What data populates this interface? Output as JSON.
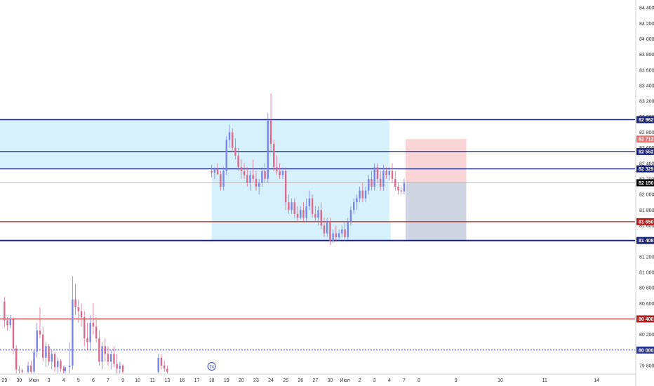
{
  "chart_data": {
    "type": "candlestick",
    "title": "",
    "xlabel": "",
    "ylabel": "",
    "ylim": [
      79700,
      84500
    ],
    "xlim": [
      -0.3,
      42.6
    ],
    "grid": false,
    "legend": "none",
    "x_ticks": [
      {
        "x": 0.0,
        "label": "29"
      },
      {
        "x": 1.0,
        "label": "30"
      },
      {
        "x": 2.0,
        "label": "Июн"
      },
      {
        "x": 3.0,
        "label": "3"
      },
      {
        "x": 4.0,
        "label": "4"
      },
      {
        "x": 5.0,
        "label": "5"
      },
      {
        "x": 6.0,
        "label": "6"
      },
      {
        "x": 7.0,
        "label": "7"
      },
      {
        "x": 8.0,
        "label": "9"
      },
      {
        "x": 9.0,
        "label": "10"
      },
      {
        "x": 10.0,
        "label": "11"
      },
      {
        "x": 11.0,
        "label": "13"
      },
      {
        "x": 12.0,
        "label": "16"
      },
      {
        "x": 13.0,
        "label": "17"
      },
      {
        "x": 14.0,
        "label": "18"
      },
      {
        "x": 15.0,
        "label": "19"
      },
      {
        "x": 16.0,
        "label": "20"
      },
      {
        "x": 17.0,
        "label": "23"
      },
      {
        "x": 18.0,
        "label": "24"
      },
      {
        "x": 19.0,
        "label": "25"
      },
      {
        "x": 20.0,
        "label": "26"
      },
      {
        "x": 21.0,
        "label": "27"
      },
      {
        "x": 22.0,
        "label": "30"
      },
      {
        "x": 23.0,
        "label": "Июл"
      },
      {
        "x": 24.0,
        "label": "2"
      },
      {
        "x": 25.0,
        "label": "3"
      },
      {
        "x": 26.0,
        "label": "4"
      },
      {
        "x": 27.0,
        "label": "7"
      },
      {
        "x": 28.0,
        "label": "8"
      },
      {
        "x": 30.5,
        "label": "9"
      },
      {
        "x": 33.5,
        "label": "10"
      },
      {
        "x": 36.5,
        "label": "11"
      },
      {
        "x": 40.0,
        "label": "14"
      }
    ],
    "y_ticks": [
      84400,
      84200,
      84000,
      83800,
      83600,
      83400,
      83200,
      83000,
      82800,
      82600,
      82400,
      82200,
      82000,
      81800,
      81600,
      81400,
      81200,
      81000,
      80800,
      80600,
      80400,
      80200,
      80000,
      79800
    ],
    "y_tick_labels": [
      "84 400",
      "84 200",
      "84 000",
      "83 800",
      "83 600",
      "83 400",
      "83 200",
      "83 000",
      "82 800",
      "82 600",
      "82 400",
      "82 200",
      "82 000",
      "81 800",
      "81 600",
      "81 400",
      "81 200",
      "81 000",
      "80 800",
      "80 600",
      "80 400",
      "80 200",
      "80 000",
      "79 800"
    ],
    "zones": [
      {
        "x0": -0.3,
        "x1": 26.0,
        "y0": 82329,
        "y1": 82962,
        "color": "#d6f1fb"
      },
      {
        "x0": 14.0,
        "x1": 26.0,
        "y0": 81650,
        "y1": 82329,
        "color": "#d6f1fb"
      },
      {
        "x0": 14.0,
        "x1": 26.1,
        "y0": 81408,
        "y1": 81650,
        "color": "#d6f1fb"
      }
    ],
    "position": {
      "x0": 27.1,
      "x1": 31.2,
      "entry": 82150,
      "target": 82712,
      "stop": 81408,
      "target_color": "#f8d4d6",
      "stop_color": "#cfd4e2"
    },
    "levels": [
      {
        "price": 82962,
        "label": "82 962",
        "color": "#1a237e",
        "style": "solid",
        "width": 1.5
      },
      {
        "price": 82552,
        "label": "82 552",
        "color": "#1a237e",
        "style": "solid",
        "width": 1.2
      },
      {
        "price": 82329,
        "label": "82 329",
        "color": "#1a237e",
        "style": "solid",
        "width": 1.2
      },
      {
        "price": 81650,
        "label": "81 650",
        "color": "#b71c1c",
        "style": "solid",
        "width": 1.2
      },
      {
        "price": 81408,
        "label": "81 408",
        "color": "#1a237e",
        "style": "solid",
        "width": 2.0
      },
      {
        "price": 80400,
        "label": "80 400",
        "color": "#b71c1c",
        "style": "solid",
        "width": 1.2
      },
      {
        "price": 80000,
        "label": "80 000",
        "color": "#283593",
        "style": "dotted",
        "width": 1.0
      }
    ],
    "extra_badges": [
      {
        "price": 82712,
        "label": "82 712",
        "color": "#e57373"
      }
    ],
    "last_price": {
      "price": 82150,
      "label": "82 150",
      "color": "#000000",
      "line_color": "#b0b0b0"
    },
    "dividends_marker": {
      "x": 14.0,
      "label": "24"
    },
    "candle_colors": {
      "up": "#7b84e8",
      "down": "#d86a8c",
      "wick": "#555555"
    },
    "candles": [
      [
        0.0,
        80620,
        80680,
        80300,
        80380
      ],
      [
        0.2,
        80380,
        80420,
        80250,
        80320
      ],
      [
        0.4,
        80320,
        80450,
        80280,
        80400
      ],
      [
        0.6,
        80400,
        80420,
        79950,
        80020
      ],
      [
        0.8,
        80020,
        80060,
        79700,
        79750
      ],
      [
        1.0,
        79750,
        79800,
        79700,
        79740
      ],
      [
        1.2,
        79740,
        79760,
        79700,
        79720
      ],
      [
        1.6,
        79720,
        79850,
        79700,
        79800
      ],
      [
        1.8,
        79800,
        79860,
        79700,
        79720
      ],
      [
        2.0,
        79720,
        80000,
        79700,
        79980
      ],
      [
        2.2,
        79980,
        80350,
        79900,
        80250
      ],
      [
        2.4,
        80250,
        80550,
        80150,
        80200
      ],
      [
        2.6,
        80200,
        80300,
        79850,
        79900
      ],
      [
        2.8,
        79900,
        80100,
        79780,
        80050
      ],
      [
        3.0,
        80050,
        80080,
        79800,
        79850
      ],
      [
        3.2,
        79850,
        80000,
        79750,
        79950
      ],
      [
        3.4,
        79950,
        79980,
        79720,
        79780
      ],
      [
        3.6,
        79780,
        79900,
        79700,
        79860
      ],
      [
        3.8,
        79860,
        79880,
        79720,
        79760
      ],
      [
        4.0,
        79760,
        79800,
        79700,
        79730
      ],
      [
        4.1,
        79730,
        79800,
        79700,
        79780
      ],
      [
        4.4,
        79780,
        80100,
        79700,
        79800
      ],
      [
        4.6,
        79800,
        80950,
        79750,
        80650
      ],
      [
        4.8,
        80650,
        80850,
        80450,
        80550
      ],
      [
        5.0,
        80550,
        80650,
        80350,
        80500
      ],
      [
        5.2,
        80500,
        80600,
        80300,
        80420
      ],
      [
        5.4,
        80420,
        80500,
        80050,
        80150
      ],
      [
        5.6,
        80150,
        80350,
        80000,
        80100
      ],
      [
        5.8,
        80100,
        80450,
        80000,
        80350
      ],
      [
        6.0,
        80350,
        80600,
        80200,
        80300
      ],
      [
        6.2,
        80300,
        80420,
        80100,
        80150
      ],
      [
        6.4,
        80150,
        80250,
        79800,
        79850
      ],
      [
        6.6,
        79850,
        80100,
        79750,
        80050
      ],
      [
        6.8,
        80050,
        80150,
        79850,
        79950
      ],
      [
        7.0,
        79950,
        80050,
        79800,
        79850
      ],
      [
        7.2,
        79850,
        80000,
        79750,
        79950
      ],
      [
        7.4,
        79950,
        80050,
        79780,
        79820
      ],
      [
        7.6,
        79820,
        79950,
        79700,
        79760
      ],
      [
        7.8,
        79760,
        79850,
        79700,
        79800
      ],
      [
        8.0,
        79800,
        79820,
        79700,
        79720
      ],
      [
        10.4,
        79720,
        79950,
        79700,
        79900
      ],
      [
        10.6,
        79900,
        79950,
        79750,
        79800
      ],
      [
        10.8,
        79800,
        79860,
        79720,
        79760
      ],
      [
        11.0,
        79760,
        79800,
        79700,
        79720
      ],
      [
        14.0,
        82300,
        82380,
        82220,
        82280
      ],
      [
        14.2,
        82280,
        82350,
        82200,
        82320
      ],
      [
        14.4,
        82320,
        82400,
        82250,
        82260
      ],
      [
        14.6,
        82260,
        82300,
        82050,
        82100
      ],
      [
        14.8,
        82100,
        82350,
        82050,
        82300
      ],
      [
        15.0,
        82300,
        82750,
        82250,
        82700
      ],
      [
        15.2,
        82700,
        82900,
        82600,
        82800
      ],
      [
        15.4,
        82800,
        82850,
        82550,
        82600
      ],
      [
        15.6,
        82600,
        82720,
        82450,
        82500
      ],
      [
        15.8,
        82500,
        82600,
        82300,
        82350
      ],
      [
        16.0,
        82350,
        82450,
        82200,
        82300
      ],
      [
        16.2,
        82300,
        82400,
        82200,
        82250
      ],
      [
        16.4,
        82250,
        82350,
        82100,
        82150
      ],
      [
        16.6,
        82150,
        82300,
        82050,
        82250
      ],
      [
        16.8,
        82250,
        82450,
        82150,
        82200
      ],
      [
        17.0,
        82200,
        82300,
        82050,
        82100
      ],
      [
        17.2,
        82100,
        82200,
        82000,
        82150
      ],
      [
        17.4,
        82150,
        82350,
        82100,
        82300
      ],
      [
        17.6,
        82300,
        82400,
        82150,
        82200
      ],
      [
        17.8,
        82200,
        83050,
        82150,
        82950
      ],
      [
        18.0,
        82950,
        83300,
        82550,
        82650
      ],
      [
        18.2,
        82650,
        82700,
        82300,
        82350
      ],
      [
        18.4,
        82350,
        82500,
        82250,
        82300
      ],
      [
        18.6,
        82300,
        82400,
        82200,
        82250
      ],
      [
        18.8,
        82250,
        82350,
        82200,
        82300
      ],
      [
        19.0,
        82300,
        82350,
        81800,
        81900
      ],
      [
        19.2,
        81900,
        82000,
        81750,
        81800
      ],
      [
        19.4,
        81800,
        81950,
        81750,
        81900
      ],
      [
        19.6,
        81900,
        81950,
        81700,
        81750
      ],
      [
        19.8,
        81750,
        81850,
        81650,
        81700
      ],
      [
        20.0,
        81700,
        81850,
        81680,
        81800
      ],
      [
        20.2,
        81800,
        81900,
        81650,
        81700
      ],
      [
        20.4,
        81700,
        81950,
        81650,
        81850
      ],
      [
        20.6,
        81850,
        82050,
        81800,
        81950
      ],
      [
        20.8,
        81950,
        82000,
        81700,
        81750
      ],
      [
        21.0,
        81750,
        81850,
        81650,
        81700
      ],
      [
        21.2,
        81700,
        81850,
        81600,
        81800
      ],
      [
        21.4,
        81800,
        81900,
        81550,
        81600
      ],
      [
        21.6,
        81600,
        81700,
        81450,
        81500
      ],
      [
        21.8,
        81500,
        81700,
        81450,
        81650
      ],
      [
        22.0,
        81650,
        81700,
        81350,
        81400
      ],
      [
        22.2,
        81400,
        81550,
        81380,
        81500
      ],
      [
        22.4,
        81500,
        81600,
        81400,
        81450
      ],
      [
        22.6,
        81450,
        81550,
        81400,
        81500
      ],
      [
        22.8,
        81500,
        81600,
        81450,
        81550
      ],
      [
        23.0,
        81550,
        81650,
        81400,
        81450
      ],
      [
        23.2,
        81450,
        81700,
        81420,
        81650
      ],
      [
        23.4,
        81650,
        81850,
        81600,
        81800
      ],
      [
        23.6,
        81800,
        81950,
        81750,
        81900
      ],
      [
        23.8,
        81900,
        82000,
        81800,
        81950
      ],
      [
        24.0,
        81950,
        82100,
        81900,
        82050
      ],
      [
        24.2,
        82050,
        82150,
        81900,
        81950
      ],
      [
        24.4,
        81950,
        82100,
        81900,
        82050
      ],
      [
        24.6,
        82050,
        82250,
        82000,
        82200
      ],
      [
        24.8,
        82200,
        82300,
        82050,
        82100
      ],
      [
        25.0,
        82100,
        82400,
        82050,
        82350
      ],
      [
        25.2,
        82350,
        82400,
        82150,
        82200
      ],
      [
        25.4,
        82200,
        82300,
        82050,
        82100
      ],
      [
        25.6,
        82100,
        82380,
        82050,
        82300
      ],
      [
        25.8,
        82300,
        82350,
        82200,
        82250
      ],
      [
        26.0,
        82250,
        82350,
        82180,
        82300
      ],
      [
        26.2,
        82300,
        82400,
        82150,
        82200
      ],
      [
        26.4,
        82200,
        82300,
        82050,
        82100
      ],
      [
        26.6,
        82100,
        82150,
        82000,
        82050
      ],
      [
        26.8,
        82050,
        82100,
        82000,
        82040
      ],
      [
        27.0,
        82040,
        82200,
        82000,
        82150
      ]
    ]
  }
}
